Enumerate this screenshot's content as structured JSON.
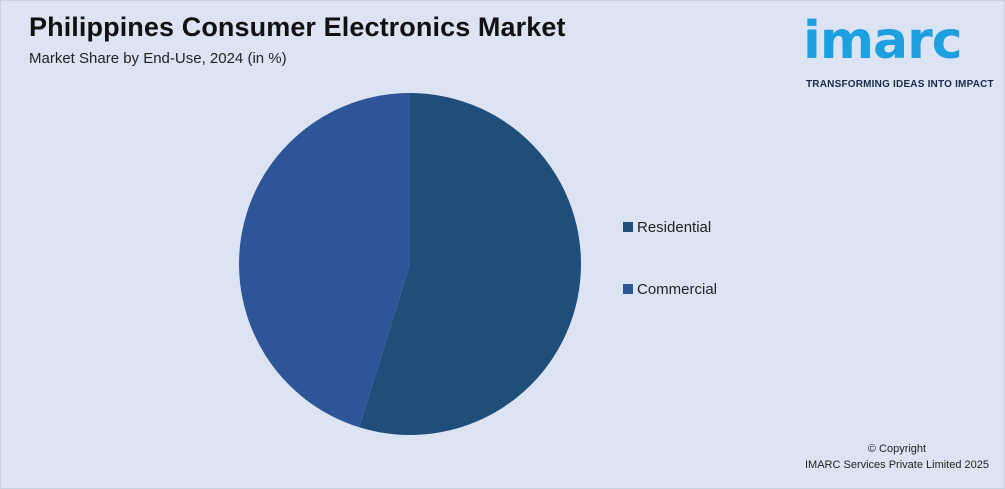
{
  "header": {
    "title": "Philippines Consumer Electronics Market",
    "subtitle": "Market Share by End-Use, 2024 (in %)"
  },
  "logo": {
    "wordmark": "imarc",
    "tagline": "TRANSFORMING IDEAS INTO IMPACT",
    "color": "#1e9fe0"
  },
  "chart_data": {
    "type": "pie",
    "title": "Philippines Consumer Electronics Market",
    "subtitle": "Market Share by End-Use, 2024 (in %)",
    "categories": [
      "Residential",
      "Commercial"
    ],
    "values": [
      54.8,
      45.2
    ],
    "colors": [
      "#1f4e7a",
      "#2e5597"
    ],
    "legend_position": "right"
  },
  "footer": {
    "copyright_line1": "© Copyright",
    "copyright_line2": "IMARC Services Private Limited 2025"
  }
}
